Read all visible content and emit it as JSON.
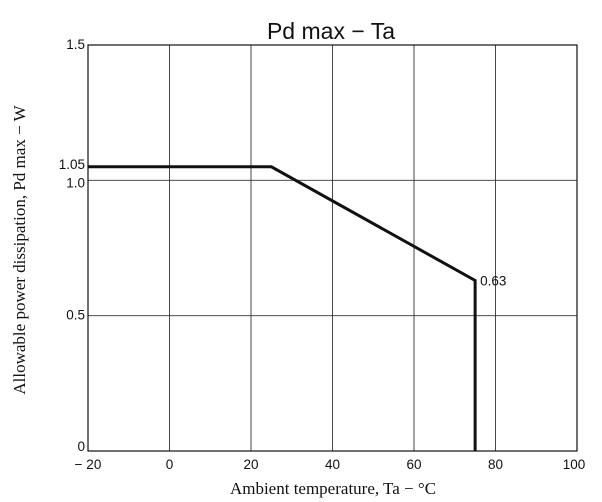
{
  "chart_data": {
    "type": "line",
    "title": "Pd max  −  Ta",
    "xlabel": "Ambient temperature,  Ta  −  °C",
    "ylabel": "Allowable power dissipation,  Pd max  −  W",
    "xlim": [
      -20,
      100
    ],
    "ylim": [
      0,
      1.5
    ],
    "x_ticks": [
      -20,
      0,
      20,
      40,
      60,
      80,
      100
    ],
    "x_tick_labels": [
      "− 20",
      "0",
      "20",
      "40",
      "60",
      "80",
      "100"
    ],
    "y_ticks": [
      0,
      0.5,
      1.0,
      1.5
    ],
    "y_tick_labels": [
      "0",
      "0.5",
      "1.0",
      "1.5"
    ],
    "extra_y_label": {
      "value": 1.05,
      "text": "1.05"
    },
    "grid": true,
    "series": [
      {
        "x": [
          -20,
          25,
          75,
          75
        ],
        "y": [
          1.05,
          1.05,
          0.63,
          0
        ]
      }
    ],
    "annotations": [
      {
        "x": 75,
        "y": 0.63,
        "text": "0.63"
      }
    ]
  }
}
